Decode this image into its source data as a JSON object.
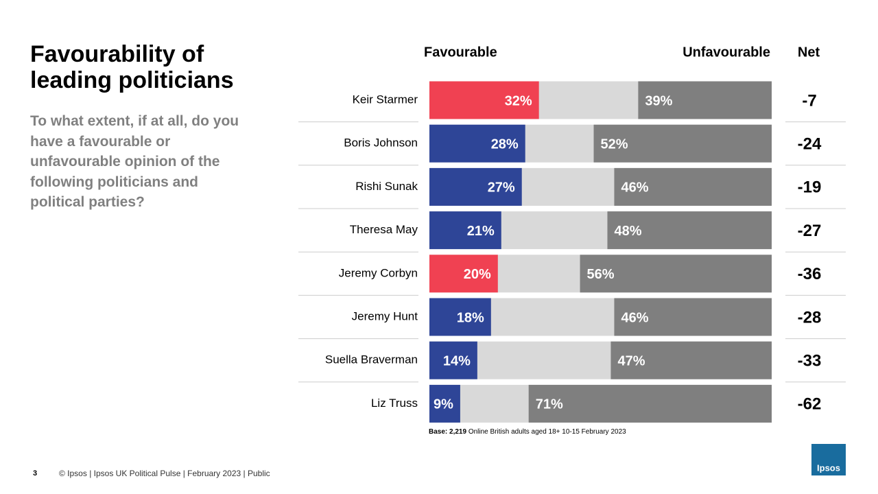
{
  "chart_data": {
    "type": "diverging-bar",
    "title": "Favourability of leading politicians",
    "subtitle": "To what extent, if at all, do you have a favourable or unfavourable opinion of the following politicians and political parties?",
    "categories": [
      "Keir Starmer",
      "Boris Johnson",
      "Rishi Sunak",
      "Theresa May",
      "Jeremy Corbyn",
      "Jeremy Hunt",
      "Suella Braverman",
      "Liz Truss"
    ],
    "xlim": [
      0,
      100
    ],
    "neither_color": "#d9d9d9",
    "series": [
      {
        "name": "Favourable",
        "colors": [
          "#f04152",
          "#2e4597",
          "#2e4597",
          "#2e4597",
          "#f04152",
          "#2e4597",
          "#2e4597",
          "#2e4597"
        ],
        "values": [
          32,
          28,
          27,
          21,
          20,
          18,
          14,
          9
        ],
        "value_labels": [
          "32%",
          "28%",
          "27%",
          "21%",
          "20%",
          "18%",
          "14%",
          "9%"
        ]
      },
      {
        "name": "Unfavourable",
        "color": "#7f7f7f",
        "values": [
          39,
          52,
          46,
          48,
          56,
          46,
          47,
          71
        ],
        "value_labels": [
          "39%",
          "52%",
          "46%",
          "48%",
          "56%",
          "46%",
          "47%",
          "71%"
        ]
      }
    ],
    "net_header": "Net",
    "net": [
      -7,
      -24,
      -19,
      -27,
      -36,
      -28,
      -33,
      -62
    ],
    "base_label": "Base: 2,219",
    "base_note": "Online British adults aged 18+ 10-15 February 2023"
  },
  "footer": {
    "page": "3",
    "text": "© Ipsos |  Ipsos UK Political Pulse | February 2023 | Public",
    "logo": "Ipsos"
  }
}
